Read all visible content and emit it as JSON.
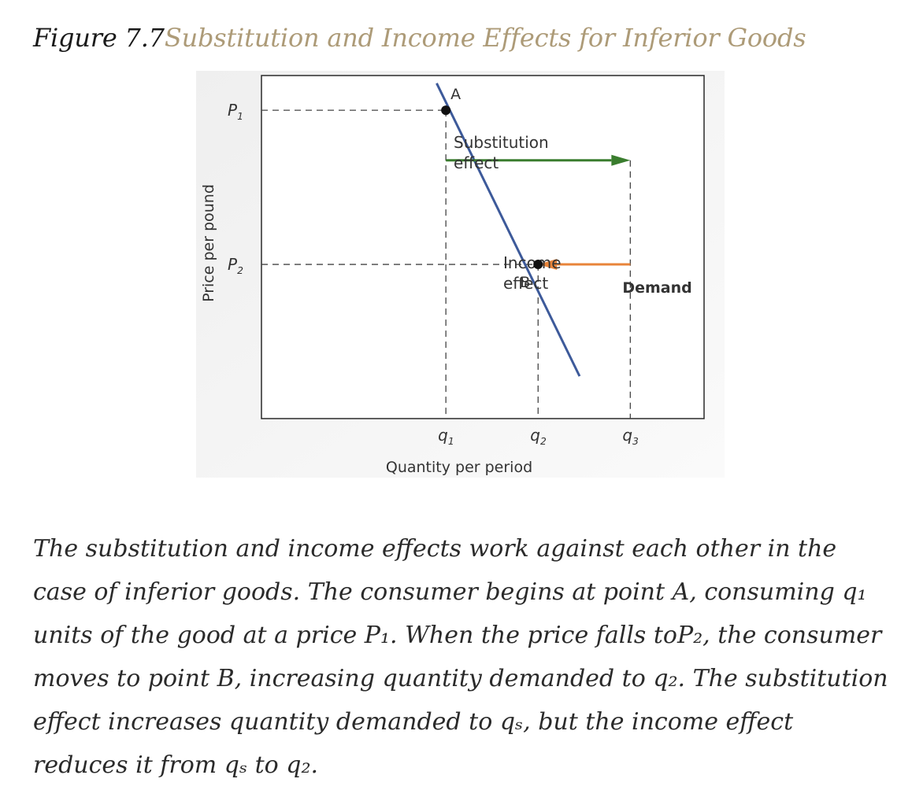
{
  "figure": {
    "number": "Figure 7.7",
    "title": "Substitution and Income Effects for Inferior Goods"
  },
  "chart_data": {
    "type": "line",
    "title": "",
    "xlabel": "Quantity per period",
    "ylabel": "Price per pound",
    "x_ticks": [
      {
        "base": "q",
        "sub": "1"
      },
      {
        "base": "q",
        "sub": "2"
      },
      {
        "base": "q",
        "sub": "3"
      }
    ],
    "y_ticks": [
      {
        "base": "P",
        "sub": "1"
      },
      {
        "base": "P",
        "sub": "2"
      }
    ],
    "series": [
      {
        "name": "Demand",
        "color": "#3d5a9a",
        "x": [
          0.9,
          2.45
        ],
        "y": [
          3.35,
          -0.45
        ]
      }
    ],
    "points": [
      {
        "label": "A",
        "x": 1,
        "y": 3
      },
      {
        "label": "B",
        "x": 2,
        "y": 1
      }
    ],
    "arrows": [
      {
        "label_lines": [
          "Substitution",
          "effect"
        ],
        "color": "#3a7d2e",
        "from": {
          "x": 1,
          "y": 2.35
        },
        "to": {
          "x": 3,
          "y": 2.35
        }
      },
      {
        "label_lines": [
          "Income",
          "effect"
        ],
        "color": "#e8843a",
        "from": {
          "x": 3,
          "y": 1
        },
        "to": {
          "x": 2,
          "y": 1
        }
      }
    ],
    "xlim": [
      -1.0,
      3.8
    ],
    "ylim": [
      -1.0,
      3.45
    ],
    "grid": false,
    "legend": "none"
  },
  "caption": {
    "text": "The substitution and income effects work against each other in the case of inferior goods. The consumer begins at point A, consuming q₁ units of the good at a price P₁. When the price falls toP₂, the consumer moves to point B, increasing quantity demanded to q₂. The substitution effect increases quantity demanded to qₛ, but the income effect reduces it from qₛ to q₂."
  }
}
